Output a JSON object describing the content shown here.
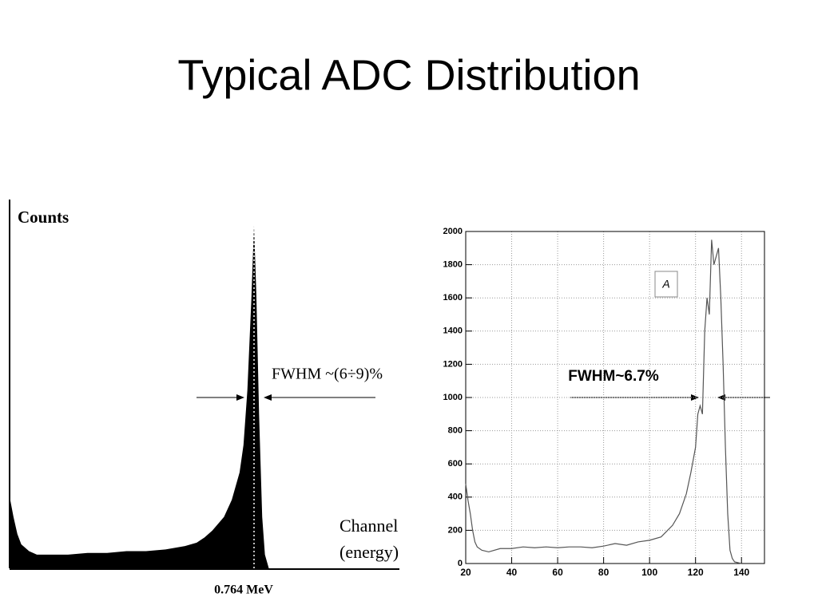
{
  "title": "Typical ADC Distribution",
  "chart_data": [
    {
      "type": "area",
      "color": "#000000",
      "ylabel": "Counts",
      "xlabel": "Channel",
      "xlabel2": "(energy)",
      "annotation": "FWHM ~(6÷9)%",
      "peak_label": "0.764 MeV",
      "xlim": [
        0,
        100
      ],
      "ylim": [
        0,
        100
      ],
      "x": [
        0,
        1,
        2,
        3,
        5,
        7,
        10,
        15,
        20,
        25,
        30,
        35,
        40,
        45,
        48,
        50,
        52,
        55,
        57,
        59,
        60,
        61,
        62,
        62.7,
        63.3,
        64,
        64.8,
        65.5,
        66.5,
        100
      ],
      "values": [
        21,
        15,
        10,
        7,
        5,
        4,
        4,
        4,
        4.5,
        4.5,
        5,
        5,
        5.5,
        6.5,
        7.5,
        9,
        11,
        15,
        20,
        28,
        36,
        52,
        78,
        100,
        80,
        45,
        15,
        4,
        0,
        0
      ]
    },
    {
      "type": "line",
      "color": "#555555",
      "grid": true,
      "legend": "A",
      "annotation": "FWHM~6.7%",
      "xlim": [
        20,
        150
      ],
      "ylim": [
        0,
        2000
      ],
      "xticks": [
        20,
        40,
        60,
        80,
        100,
        120,
        140
      ],
      "yticks": [
        0,
        200,
        400,
        600,
        800,
        1000,
        1200,
        1400,
        1600,
        1800,
        2000
      ],
      "x": [
        20,
        21,
        22,
        23,
        24,
        25,
        27,
        30,
        35,
        40,
        45,
        50,
        55,
        60,
        65,
        70,
        75,
        80,
        85,
        90,
        95,
        100,
        105,
        110,
        113,
        116,
        118,
        120,
        121,
        122,
        123,
        124,
        125,
        126,
        127,
        128,
        129,
        130,
        131,
        132,
        133,
        134,
        135,
        136,
        137,
        140
      ],
      "values": [
        480,
        380,
        300,
        200,
        130,
        100,
        80,
        70,
        90,
        90,
        100,
        95,
        100,
        95,
        100,
        100,
        95,
        105,
        120,
        110,
        130,
        140,
        160,
        230,
        300,
        420,
        550,
        700,
        900,
        950,
        900,
        1400,
        1600,
        1500,
        1950,
        1800,
        1850,
        1900,
        1600,
        1200,
        700,
        300,
        80,
        30,
        10,
        0
      ]
    }
  ]
}
